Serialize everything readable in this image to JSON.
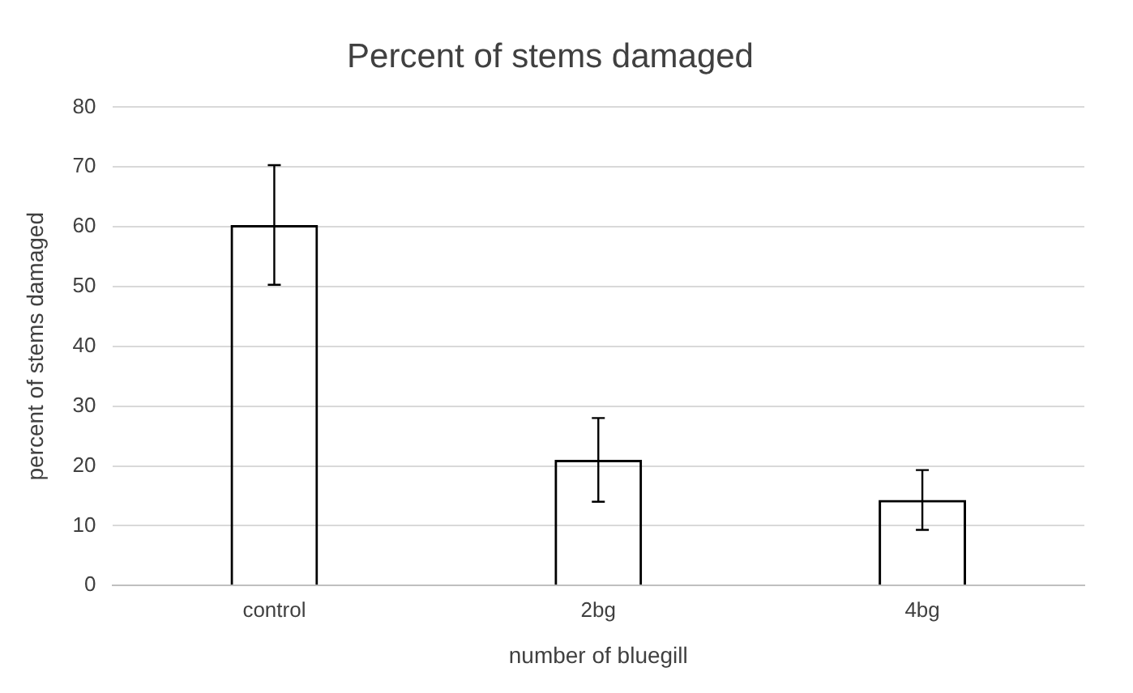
{
  "chart_data": {
    "type": "bar",
    "title": "Percent of stems damaged",
    "xlabel": "number of bluegill",
    "ylabel": "percent of stems damaged",
    "categories": [
      "control",
      "2bg",
      "4bg"
    ],
    "values": [
      60.3,
      21,
      14.3
    ],
    "errors": [
      10,
      7,
      5
    ],
    "color": "#000000",
    "ylim": [
      0,
      80
    ],
    "yticks": [
      0,
      10,
      20,
      30,
      40,
      50,
      60,
      70,
      80
    ],
    "grid": "y",
    "legend": false
  }
}
